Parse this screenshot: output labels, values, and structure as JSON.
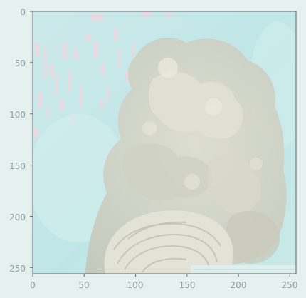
{
  "figure": {
    "kind": "image-with-pixel-axes",
    "image_size": {
      "width": 256,
      "height": 256
    },
    "x_ticks": [
      "0",
      "50",
      "100",
      "150",
      "200",
      "250"
    ],
    "y_ticks": [
      "0",
      "50",
      "100",
      "150",
      "200",
      "250"
    ],
    "x_tick_values": [
      0,
      50,
      100,
      150,
      200,
      250
    ],
    "y_tick_values": [
      0,
      50,
      100,
      150,
      200,
      250
    ],
    "palette": {
      "page_background": "#e6f1ef",
      "water": "#bfe6e6",
      "water_light": "#d8efef",
      "coral": "#d6d4c4",
      "coral_shadow": "#b8bcaf",
      "brain_coral": "#e2e2d6",
      "pink_speckle": "#f1d6de",
      "axis": "#5d6a6b",
      "tick_text": "#8e9ea0"
    }
  }
}
